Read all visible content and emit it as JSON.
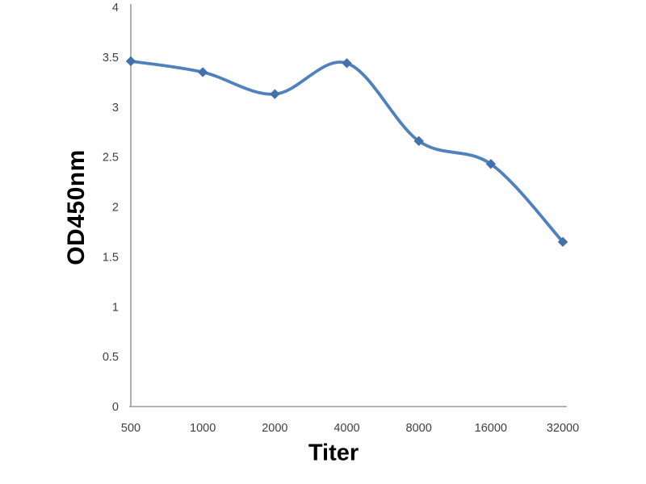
{
  "chart_data": {
    "type": "line",
    "title": "",
    "xlabel": "Titer",
    "ylabel": "OD450nm",
    "categories": [
      "500",
      "1000",
      "2000",
      "4000",
      "8000",
      "16000",
      "32000"
    ],
    "series": [
      {
        "name": "OD450nm",
        "values": [
          3.46,
          3.35,
          3.13,
          3.44,
          2.66,
          2.43,
          1.65
        ]
      }
    ],
    "ylim": [
      0,
      4
    ],
    "ytick_step": 0.5,
    "yticks": [
      "0",
      "0.5",
      "1",
      "1.5",
      "2",
      "2.5",
      "3",
      "3.5",
      "4"
    ],
    "grid": false,
    "legend": "none",
    "smoothed": true,
    "marker": "diamond",
    "line_color": "#4F81BD",
    "marker_color": "#4470AC",
    "axis_color": "#9C9C9C",
    "tick_label_color": "#3F3F3F"
  }
}
